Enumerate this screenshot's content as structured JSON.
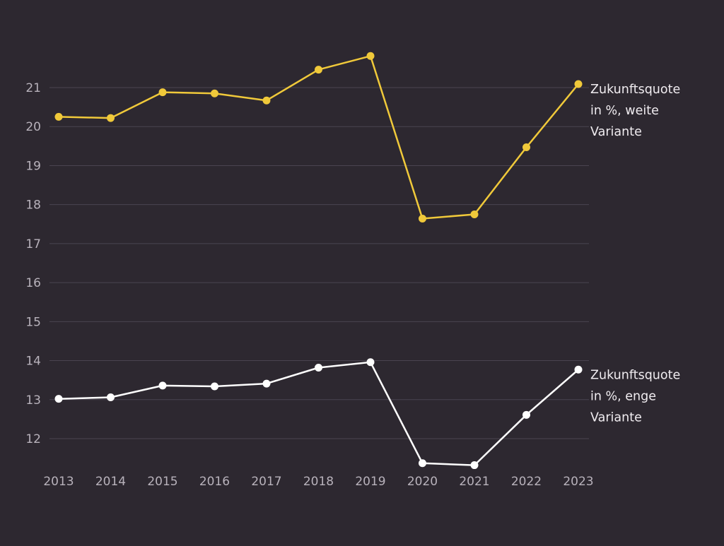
{
  "chart_data": {
    "type": "line",
    "x": [
      "2013",
      "2014",
      "2015",
      "2016",
      "2017",
      "2018",
      "2019",
      "2020",
      "2021",
      "2022",
      "2023"
    ],
    "yticks": [
      "12",
      "13",
      "14",
      "15",
      "16",
      "17",
      "18",
      "19",
      "20",
      "21"
    ],
    "ylim": [
      11.4,
      22.0
    ],
    "grid": true,
    "series": [
      {
        "name": "Zukunftsquote in %, weite Variante",
        "label_lines": [
          "Zukunftsquote",
          "in %, weite",
          "Variante"
        ],
        "color": "#f0c93a",
        "values": [
          20.25,
          20.22,
          20.88,
          20.85,
          20.67,
          21.46,
          21.81,
          17.64,
          17.75,
          19.47,
          21.09
        ]
      },
      {
        "name": "Zukunftsquote in %, enge Variante",
        "label_lines": [
          "Zukunftsquote",
          "in %, enge",
          "Variante"
        ],
        "color": "#ffffff",
        "values": [
          13.02,
          13.06,
          13.36,
          13.34,
          13.41,
          13.82,
          13.96,
          11.37,
          11.32,
          12.61,
          13.77
        ]
      }
    ],
    "colors": {
      "background": "#2d2830",
      "grid": "#4a4450",
      "tick_text": "#b8b2bb",
      "label_text": "#f0ecf0"
    }
  }
}
